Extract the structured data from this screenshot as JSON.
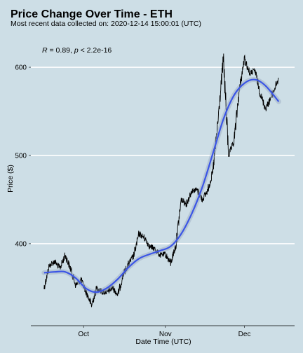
{
  "chart_data": {
    "type": "line",
    "title": "Price Change Over Time - ETH",
    "subtitle": "Most recent data collected on: 2020-12-14 15:00:01 (UTC)",
    "annotation": {
      "r_label": "R",
      "r_value": " = 0.89, ",
      "p_label": "p",
      "p_value": " < 2.2e-16"
    },
    "xlabel": "Date Time (UTC)",
    "ylabel": "Price ($)",
    "x_ticks": [
      {
        "date": "2020-10-01",
        "label": "Oct"
      },
      {
        "date": "2020-11-01",
        "label": "Nov"
      },
      {
        "date": "2020-12-01",
        "label": "Dec"
      }
    ],
    "y_ticks": [
      {
        "value": 400,
        "label": "400"
      },
      {
        "value": 500,
        "label": "500"
      },
      {
        "value": 600,
        "label": "600"
      }
    ],
    "xlim": [
      "2020-09-11",
      "2020-12-20"
    ],
    "ylim": [
      307,
      631
    ],
    "grid": "horizontal-major",
    "series": [
      {
        "role": "price",
        "color": "#000000",
        "x": [
          "2020-09-16",
          "2020-09-18",
          "2020-09-20",
          "2020-09-22",
          "2020-09-24",
          "2020-09-26",
          "2020-09-28",
          "2020-09-30",
          "2020-10-02",
          "2020-10-04",
          "2020-10-06",
          "2020-10-08",
          "2020-10-10",
          "2020-10-12",
          "2020-10-14",
          "2020-10-16",
          "2020-10-18",
          "2020-10-20",
          "2020-10-22",
          "2020-10-24",
          "2020-10-26",
          "2020-10-28",
          "2020-10-30",
          "2020-11-01",
          "2020-11-03",
          "2020-11-05",
          "2020-11-07",
          "2020-11-09",
          "2020-11-11",
          "2020-11-13",
          "2020-11-15",
          "2020-11-17",
          "2020-11-19",
          "2020-11-21",
          "2020-11-23",
          "2020-11-25",
          "2020-11-27",
          "2020-11-29",
          "2020-12-01",
          "2020-12-03",
          "2020-12-05",
          "2020-12-07",
          "2020-12-09",
          "2020-12-11",
          "2020-12-14"
        ],
        "y": [
          350,
          375,
          380,
          372,
          387,
          372,
          353,
          359,
          345,
          330,
          350,
          345,
          345,
          350,
          342,
          365,
          377,
          386,
          411,
          407,
          397,
          394,
          387,
          388,
          378,
          398,
          450,
          445,
          460,
          461,
          450,
          460,
          481,
          540,
          610,
          500,
          515,
          573,
          610,
          593,
          596,
          570,
          553,
          565,
          588
        ]
      },
      {
        "role": "smooth",
        "color": "#3b55e6",
        "x": [
          "2020-09-16",
          "2020-09-20",
          "2020-09-24",
          "2020-09-28",
          "2020-10-02",
          "2020-10-06",
          "2020-10-10",
          "2020-10-14",
          "2020-10-18",
          "2020-10-22",
          "2020-10-26",
          "2020-10-30",
          "2020-11-03",
          "2020-11-07",
          "2020-11-11",
          "2020-11-15",
          "2020-11-19",
          "2020-11-23",
          "2020-11-27",
          "2020-12-01",
          "2020-12-05",
          "2020-12-09",
          "2020-12-14"
        ],
        "y": [
          367,
          368,
          368,
          361,
          349,
          345,
          350,
          360,
          373,
          383,
          388,
          392,
          397,
          411,
          434,
          464,
          502,
          541,
          568,
          582,
          586,
          579,
          561
        ]
      }
    ]
  }
}
